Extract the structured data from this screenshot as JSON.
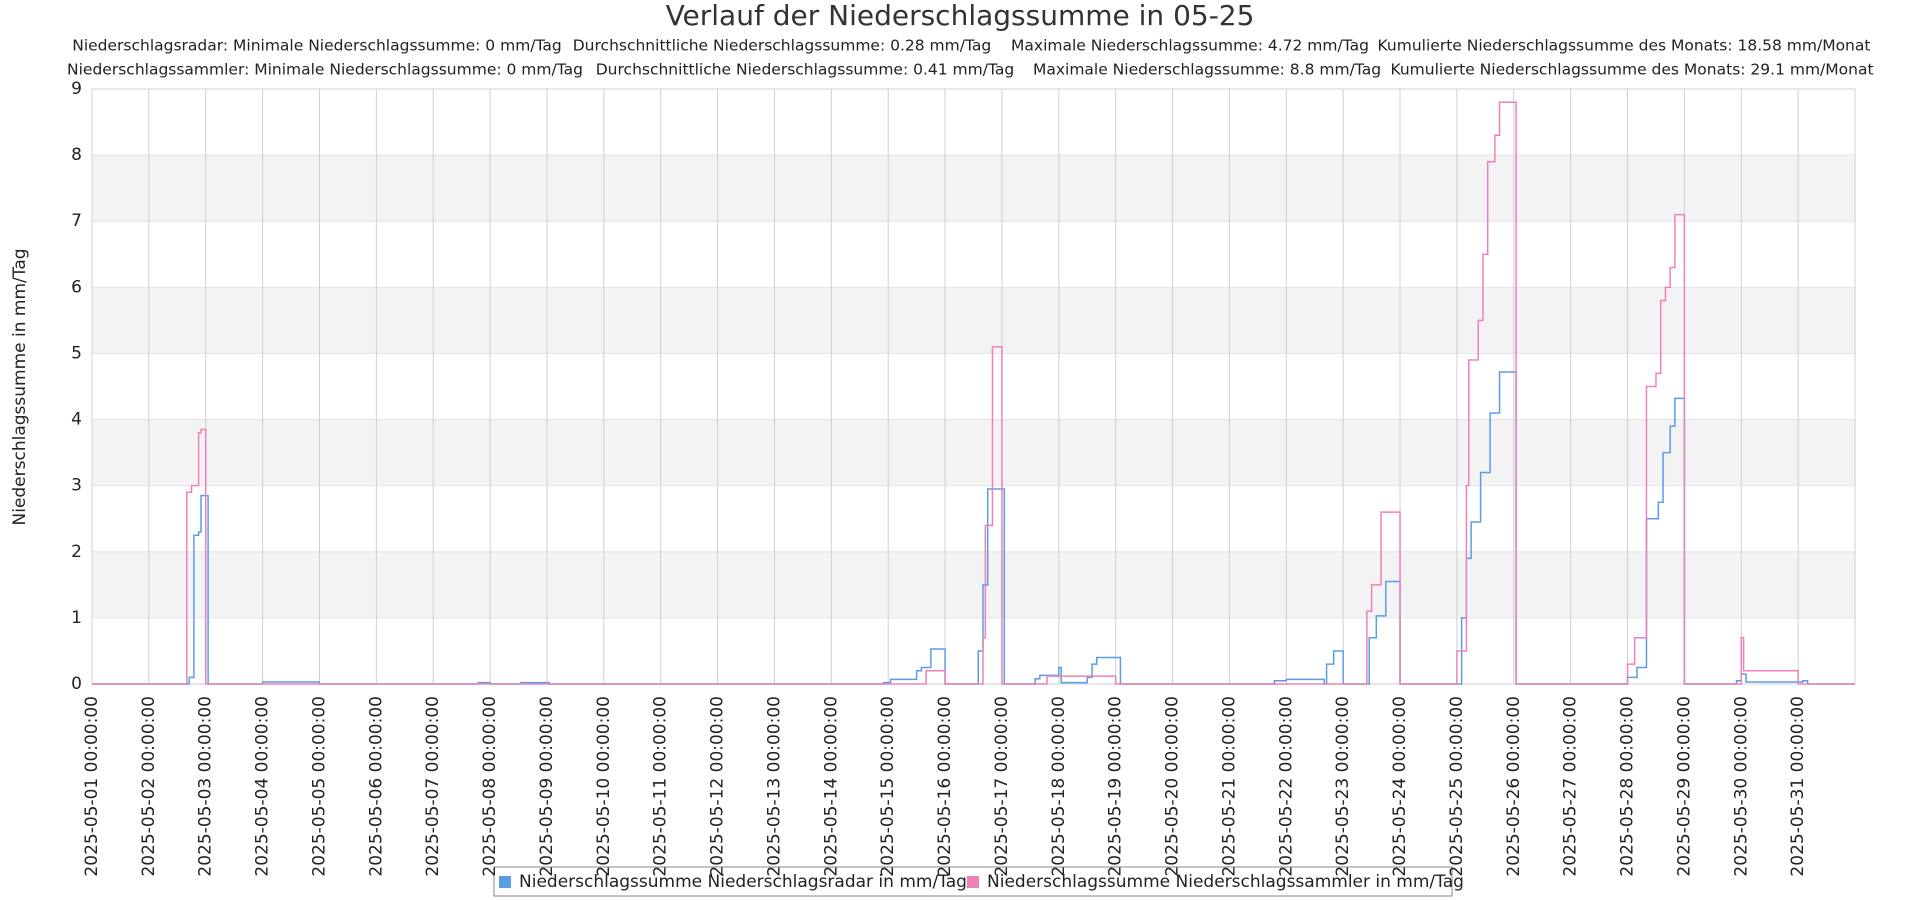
{
  "chart_data": {
    "type": "line",
    "step": true,
    "title": "Verlauf der Niederschlagssumme in 05-25",
    "subtitle": [
      [
        "Niederschlagsradar: Minimale Niederschlagssumme: 0 mm/Tag",
        "Durchschnittliche Niederschlagssumme: 0.28 mm/Tag",
        "Maximale Niederschlagssumme: 4.72 mm/Tag",
        "Kumulierte Niederschlagssumme des Monats: 18.58 mm/Monat"
      ],
      [
        "Niederschlagssammler: Minimale Niederschlagssumme: 0 mm/Tag",
        "Durchschnittliche Niederschlagssumme: 0.41 mm/Tag",
        "Maximale Niederschlagssumme: 8.8 mm/Tag",
        "Kumulierte Niederschlagssumme des Monats: 29.1 mm/Monat"
      ]
    ],
    "ylabel": "Niederschlagssumme in mm/Tag",
    "xlim": [
      "2025-05-01 00:00:00",
      "2025-06-01 00:00:00"
    ],
    "xticks": [
      "2025-05-01 00:00:00",
      "2025-05-02 00:00:00",
      "2025-05-03 00:00:00",
      "2025-05-04 00:00:00",
      "2025-05-05 00:00:00",
      "2025-05-06 00:00:00",
      "2025-05-07 00:00:00",
      "2025-05-08 00:00:00",
      "2025-05-09 00:00:00",
      "2025-05-10 00:00:00",
      "2025-05-11 00:00:00",
      "2025-05-12 00:00:00",
      "2025-05-13 00:00:00",
      "2025-05-14 00:00:00",
      "2025-05-15 00:00:00",
      "2025-05-16 00:00:00",
      "2025-05-17 00:00:00",
      "2025-05-18 00:00:00",
      "2025-05-19 00:00:00",
      "2025-05-20 00:00:00",
      "2025-05-21 00:00:00",
      "2025-05-22 00:00:00",
      "2025-05-23 00:00:00",
      "2025-05-24 00:00:00",
      "2025-05-25 00:00:00",
      "2025-05-26 00:00:00",
      "2025-05-27 00:00:00",
      "2025-05-28 00:00:00",
      "2025-05-29 00:00:00",
      "2025-05-30 00:00:00",
      "2025-05-31 00:00:00"
    ],
    "ylim": [
      0,
      9
    ],
    "yticks": [
      0,
      1,
      2,
      3,
      4,
      5,
      6,
      7,
      8,
      9
    ],
    "grid": true,
    "legend": "bottom",
    "series": [
      {
        "name": "Niederschlagssumme Niederschlagsradar in mm/Tag",
        "color": "#5a9de6",
        "x": [
          "2025-05-01 00:00:00",
          "2025-05-02 17:00:00",
          "2025-05-02 19:00:00",
          "2025-05-02 21:00:00",
          "2025-05-02 22:00:00",
          "2025-05-03 01:00:00",
          "2025-05-04 00:00:00",
          "2025-05-05 00:00:00",
          "2025-05-07 19:00:00",
          "2025-05-08 00:00:00",
          "2025-05-08 13:00:00",
          "2025-05-09 01:00:00",
          "2025-05-14 22:00:00",
          "2025-05-15 01:00:00",
          "2025-05-15 12:00:00",
          "2025-05-15 14:00:00",
          "2025-05-15 18:00:00",
          "2025-05-16 00:00:00",
          "2025-05-16 14:00:00",
          "2025-05-16 16:00:00",
          "2025-05-16 18:00:00",
          "2025-05-17 01:00:00",
          "2025-05-17 14:00:00",
          "2025-05-17 16:00:00",
          "2025-05-18 00:00:00",
          "2025-05-18 01:00:00",
          "2025-05-18 12:00:00",
          "2025-05-18 14:00:00",
          "2025-05-18 16:00:00",
          "2025-05-19 02:00:00",
          "2025-05-21 19:00:00",
          "2025-05-22 00:00:00",
          "2025-05-22 16:00:00",
          "2025-05-22 17:00:00",
          "2025-05-22 20:00:00",
          "2025-05-23 00:00:00",
          "2025-05-23 11:00:00",
          "2025-05-23 14:00:00",
          "2025-05-23 18:00:00",
          "2025-05-24 00:00:00",
          "2025-05-25 02:00:00",
          "2025-05-25 04:00:00",
          "2025-05-25 06:00:00",
          "2025-05-25 10:00:00",
          "2025-05-25 14:00:00",
          "2025-05-25 18:00:00",
          "2025-05-26 01:00:00",
          "2025-05-28 00:00:00",
          "2025-05-28 04:00:00",
          "2025-05-28 08:00:00",
          "2025-05-28 13:00:00",
          "2025-05-28 15:00:00",
          "2025-05-28 18:00:00",
          "2025-05-28 20:00:00",
          "2025-05-29 00:00:00",
          "2025-05-29 22:00:00",
          "2025-05-30 00:00:00",
          "2025-05-30 02:00:00",
          "2025-05-31 02:00:00",
          "2025-05-31 04:00:00",
          "2025-05-31 23:00:00"
        ],
        "values": [
          0,
          0.1,
          2.25,
          2.3,
          2.85,
          0,
          0.03,
          0,
          0.02,
          0,
          0.02,
          0,
          0.02,
          0.07,
          0.2,
          0.25,
          0.53,
          0,
          0.5,
          1.5,
          2.95,
          0,
          0.08,
          0.13,
          0.25,
          0.02,
          0.1,
          0.3,
          0.4,
          0,
          0.05,
          0.07,
          0,
          0.3,
          0.5,
          0,
          0.7,
          1.03,
          1.55,
          0,
          1,
          1.9,
          2.45,
          3.2,
          4.1,
          4.72,
          0,
          0.1,
          0.25,
          2.5,
          2.75,
          3.5,
          3.9,
          4.32,
          0,
          0.05,
          0.15,
          0.03,
          0.05,
          0,
          0
        ]
      },
      {
        "name": "Niederschlagssumme Niederschlagssammler in mm/Tag",
        "color": "#ee82b8",
        "x": [
          "2025-05-01 00:00:00",
          "2025-05-02 16:00:00",
          "2025-05-02 18:00:00",
          "2025-05-02 21:00:00",
          "2025-05-02 22:00:00",
          "2025-05-03 00:00:00",
          "2025-05-15 16:00:00",
          "2025-05-16 00:00:00",
          "2025-05-16 16:00:00",
          "2025-05-16 17:00:00",
          "2025-05-16 20:00:00",
          "2025-05-17 00:00:00",
          "2025-05-17 19:00:00",
          "2025-05-19 00:00:00",
          "2025-05-23 10:00:00",
          "2025-05-23 12:00:00",
          "2025-05-23 16:00:00",
          "2025-05-24 00:00:00",
          "2025-05-25 00:00:00",
          "2025-05-25 04:00:00",
          "2025-05-25 05:00:00",
          "2025-05-25 09:00:00",
          "2025-05-25 11:00:00",
          "2025-05-25 13:00:00",
          "2025-05-25 16:00:00",
          "2025-05-25 18:00:00",
          "2025-05-26 01:00:00",
          "2025-05-28 00:00:00",
          "2025-05-28 03:00:00",
          "2025-05-28 08:00:00",
          "2025-05-28 12:00:00",
          "2025-05-28 14:00:00",
          "2025-05-28 16:00:00",
          "2025-05-28 18:00:00",
          "2025-05-28 20:00:00",
          "2025-05-29 00:00:00",
          "2025-05-30 00:00:00",
          "2025-05-30 01:00:00",
          "2025-05-31 00:00:00",
          "2025-05-31 23:00:00"
        ],
        "values": [
          0,
          2.9,
          3,
          3.8,
          3.85,
          0,
          0.2,
          0,
          0.7,
          2.4,
          5.1,
          0,
          0.12,
          0,
          1.1,
          1.5,
          2.6,
          0,
          0.5,
          3,
          4.9,
          5.5,
          6.5,
          7.9,
          8.3,
          8.8,
          0,
          0.3,
          0.7,
          4.5,
          4.7,
          5.8,
          6,
          6.3,
          7.1,
          0,
          0.7,
          0.2,
          0,
          0
        ]
      }
    ]
  }
}
